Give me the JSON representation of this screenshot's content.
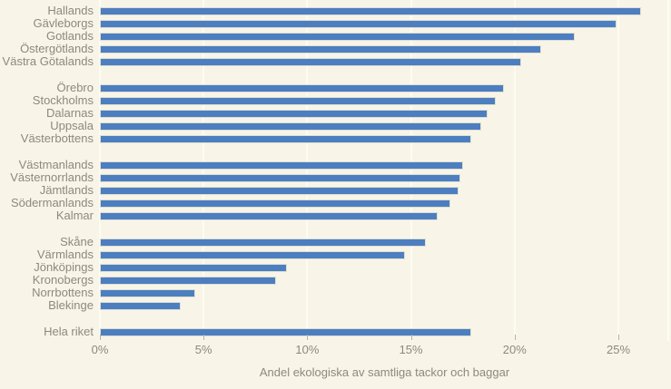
{
  "chart_data": {
    "type": "bar",
    "orientation": "horizontal",
    "title": "",
    "xlabel": "Andel ekologiska av samtliga tackor och baggar",
    "ylabel": "",
    "xlim": [
      0,
      27.5
    ],
    "grid": "vertical-major",
    "legend": null,
    "x_ticks": [
      {
        "value": 0,
        "label": "0%"
      },
      {
        "value": 5,
        "label": "5%"
      },
      {
        "value": 10,
        "label": "10%"
      },
      {
        "value": 15,
        "label": "15%"
      },
      {
        "value": 20,
        "label": "20%"
      },
      {
        "value": 25,
        "label": "25%"
      }
    ],
    "groups": [
      [
        {
          "label": "Hallands",
          "value": 26.1
        },
        {
          "label": "Gävleborgs",
          "value": 24.9
        },
        {
          "label": "Gotlands",
          "value": 22.9
        },
        {
          "label": "Östergötlands",
          "value": 21.3
        },
        {
          "label": "Västra Götalands",
          "value": 20.3
        }
      ],
      [
        {
          "label": "Örebro",
          "value": 19.5
        },
        {
          "label": "Stockholms",
          "value": 19.1
        },
        {
          "label": "Dalarnas",
          "value": 18.7
        },
        {
          "label": "Uppsala",
          "value": 18.4
        },
        {
          "label": "Västerbottens",
          "value": 17.9
        }
      ],
      [
        {
          "label": "Västmanlands",
          "value": 17.5
        },
        {
          "label": "Västernorrlands",
          "value": 17.4
        },
        {
          "label": "Jämtlands",
          "value": 17.3
        },
        {
          "label": "Södermanlands",
          "value": 16.9
        },
        {
          "label": "Kalmar",
          "value": 16.3
        }
      ],
      [
        {
          "label": "Skåne",
          "value": 15.7
        },
        {
          "label": "Värmlands",
          "value": 14.7
        },
        {
          "label": "Jönköpings",
          "value": 9.0
        },
        {
          "label": "Kronobergs",
          "value": 8.5
        },
        {
          "label": "Norrbottens",
          "value": 4.6
        },
        {
          "label": "Blekinge",
          "value": 3.9
        }
      ],
      [
        {
          "label": "Hela riket",
          "value": 17.9
        }
      ]
    ]
  },
  "colors": {
    "background": "#f8f5e8",
    "bar": "#4d7ec0",
    "bar_border": "#dcdfd2",
    "gridline": "#fdfcf2",
    "text": "#8d897c",
    "tick": "#b5b1a3"
  }
}
